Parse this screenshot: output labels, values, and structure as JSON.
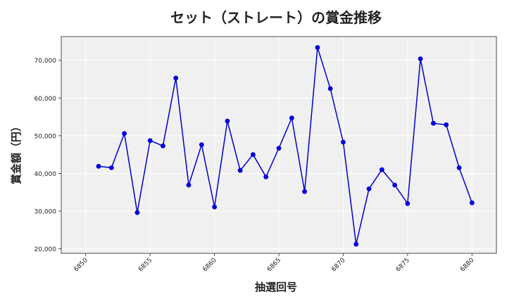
{
  "chart_data": {
    "type": "line",
    "title": "セット（ストレート）の賞金推移",
    "xlabel": "抽選回号",
    "ylabel": "賞金額（円）",
    "xlim": [
      6848.1,
      6881.9
    ],
    "ylim": [
      18800,
      76300
    ],
    "xticks": [
      6850,
      6855,
      6860,
      6865,
      6870,
      6875,
      6880
    ],
    "yticks": [
      20000,
      30000,
      40000,
      50000,
      60000,
      70000
    ],
    "xtick_labels": [
      "6850",
      "6855",
      "6860",
      "6865",
      "6870",
      "6875",
      "6880"
    ],
    "ytick_labels": [
      "20,000",
      "30,000",
      "40,000",
      "50,000",
      "60,000",
      "70,000"
    ],
    "grid": true,
    "line_color": "#0000cc",
    "marker_color": "#0000dd",
    "plot_background": "#f0f0f0",
    "series": [
      {
        "x": [
          6851,
          6852,
          6853,
          6854,
          6855,
          6856,
          6857,
          6858,
          6859,
          6860,
          6861,
          6862,
          6863,
          6864,
          6865,
          6866,
          6867,
          6868,
          6869,
          6870,
          6871,
          6872,
          6873,
          6874,
          6875,
          6876,
          6877,
          6878,
          6879,
          6880
        ],
        "values": [
          41900,
          41500,
          50600,
          29600,
          48700,
          47300,
          65300,
          36900,
          47600,
          31100,
          53900,
          40800,
          45000,
          39100,
          46700,
          54700,
          35200,
          73400,
          62500,
          48300,
          21200,
          35900,
          41000,
          36900,
          32000,
          70400,
          53300,
          52900,
          41500,
          32200
        ]
      }
    ]
  }
}
